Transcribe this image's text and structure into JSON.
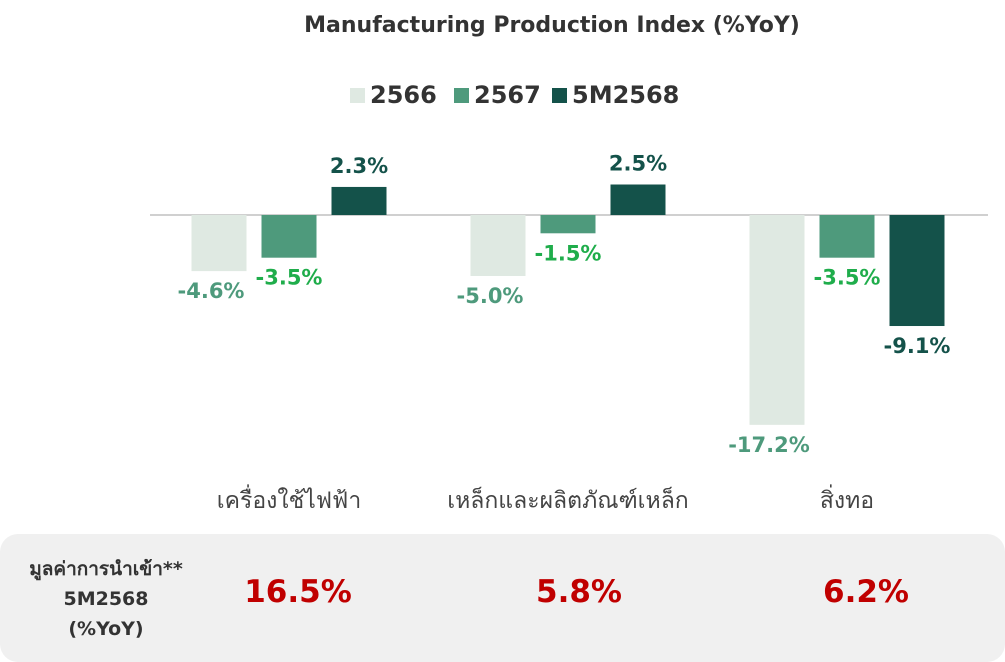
{
  "chart_data": {
    "type": "bar",
    "title": "Manufacturing Production Index (%YoY)",
    "categories": [
      "เครื่องใช้ไฟฟ้า",
      "เหล็กและผลิตภัณฑ์เหล็ก",
      "สิ่งทอ"
    ],
    "series": [
      {
        "name": "2566",
        "values": [
          -4.6,
          -5.0,
          -17.2
        ],
        "labels": [
          "-4.6%",
          "-5.0%",
          "-17.2%"
        ],
        "color": "#dfe9e2",
        "label_color": "#4e9a7c"
      },
      {
        "name": "2567",
        "values": [
          -3.5,
          -1.5,
          -3.5
        ],
        "labels": [
          "-3.5%",
          "-1.5%",
          "-3.5%"
        ],
        "color": "#4e9a7c",
        "label_color": "#1fad4b"
      },
      {
        "name": "5M2568",
        "values": [
          2.3,
          2.5,
          -9.1
        ],
        "labels": [
          "2.3%",
          "2.5%",
          "-9.1%"
        ],
        "color": "#14524a",
        "label_color": "#14524a"
      }
    ],
    "legend_position": "top-center",
    "grid": false
  },
  "imports": {
    "header_lines": [
      "มูลค่าการนำเข้า**",
      "5M2568",
      "(%YoY)"
    ],
    "values": [
      "16.5%",
      "5.8%",
      "6.2%"
    ],
    "value_color": "#c00000"
  }
}
